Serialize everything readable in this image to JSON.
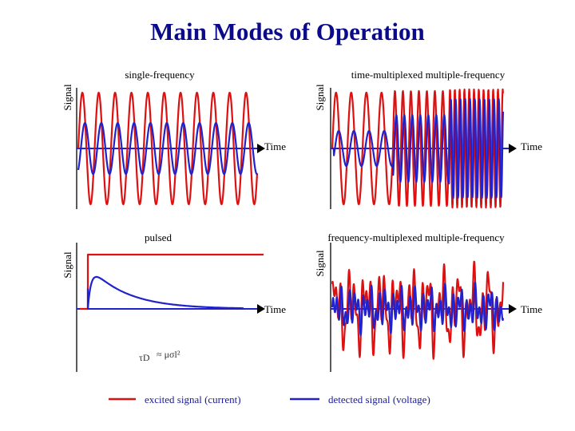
{
  "title": "Main Modes of Operation",
  "panels": {
    "single": {
      "title": "single-frequency",
      "ylabel": "Signal",
      "xlabel": "Time"
    },
    "tmux": {
      "title": "time-multiplexed multiple-frequency",
      "ylabel": "Signal",
      "xlabel": "Time"
    },
    "pulsed": {
      "title": "pulsed",
      "ylabel": "Signal",
      "xlabel": "Time",
      "formula_lhs": "τD",
      "formula_rhs": "≈ μσl²"
    },
    "fmux": {
      "title": "frequency-multiplexed multiple-frequency",
      "ylabel": "Signal",
      "xlabel": "Time"
    }
  },
  "legend": {
    "excited": "excited  signal (current)",
    "detected": "detected signal (voltage)"
  },
  "colors": {
    "excited": "#dd1111",
    "detected": "#2222cc",
    "title": "#0a0a8a"
  }
}
